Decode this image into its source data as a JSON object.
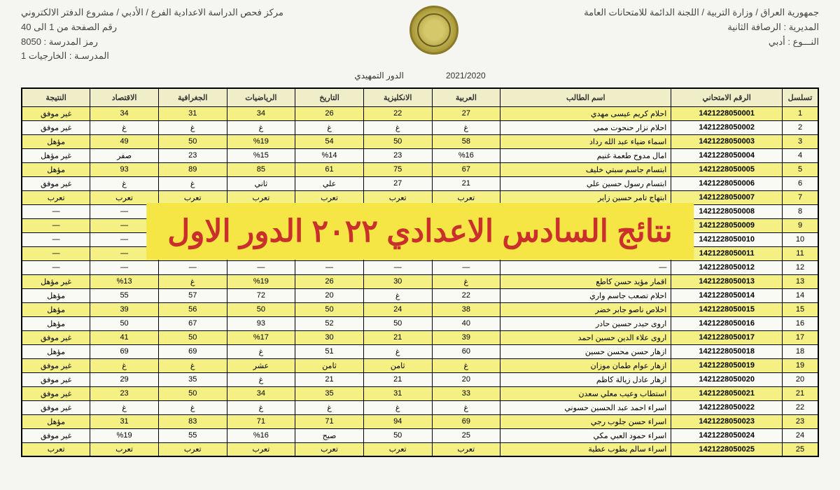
{
  "header": {
    "right_lines": [
      "جمهورية العراق / وزارة التربية / اللجنة الدائمة للامتحانات العامة",
      "المديرية : الرصافة الثانية",
      "النـــوع : أدبي"
    ],
    "left_lines": [
      "مركز فحص الدراسة الاعدادية الفرع / الأدبي / مشروع الدفتر الالكتروني",
      "رقم الصفحة من 1 الى 40",
      "رمز المدرسة : 8050",
      "المدرسـة : الخارجيات 1"
    ],
    "year_label": "الدور التمهيدي",
    "year_value": "2021/2020"
  },
  "overlay_text": "نتائج السادس الاعدادي ٢٠٢٢ الدور الاول",
  "columns": [
    "تسلسل",
    "الرقم الامتحاني",
    "اسم الطالب",
    "العربية",
    "الانكليزية",
    "التاريخ",
    "الرياضيات",
    "الجغرافية",
    "الاقتصاد",
    "النتيجة"
  ],
  "rows": [
    {
      "y": true,
      "seq": "1",
      "exam": "1421228050001",
      "name": "احلام كريم عيسى مهدي",
      "s": [
        "27",
        "22",
        "26",
        "34",
        "31",
        "34"
      ],
      "r": "غير موفق"
    },
    {
      "y": false,
      "seq": "2",
      "exam": "1421228050002",
      "name": "احلام نزار حنحوت ممي",
      "s": [
        "غ",
        "غ",
        "غ",
        "غ",
        "غ",
        "غ"
      ],
      "r": "غير موفق"
    },
    {
      "y": true,
      "seq": "3",
      "exam": "1421228050003",
      "name": "اسماء ضياء عبد الله رداد",
      "s": [
        "58",
        "50",
        "54",
        "%19",
        "50",
        "49"
      ],
      "r": "مؤهل"
    },
    {
      "y": false,
      "seq": "4",
      "exam": "1421228050004",
      "name": "امال مدوح طعمة غنيم",
      "s": [
        "%16",
        "23",
        "%14",
        "%15",
        "23",
        "صفر"
      ],
      "r": "غير مؤهل"
    },
    {
      "y": true,
      "seq": "5",
      "exam": "1421228050005",
      "name": "ابتسام جاسم سبتي خليف",
      "s": [
        "67",
        "75",
        "61",
        "85",
        "89",
        "93"
      ],
      "r": "مؤهل"
    },
    {
      "y": false,
      "seq": "6",
      "exam": "1421228050006",
      "name": "ابتسام رسول حسين علي",
      "s": [
        "21",
        "27",
        "علي",
        "ثاني",
        "غ",
        "غ"
      ],
      "r": "غير موفق"
    },
    {
      "y": true,
      "seq": "7",
      "exam": "1421228050007",
      "name": "ابتهاج تامر حسين زاير",
      "s": [
        "تعرب",
        "تعرب",
        "تعرب",
        "تعرب",
        "تعرب",
        "تعرب"
      ],
      "r": "تعرب"
    },
    {
      "y": false,
      "seq": "8",
      "exam": "1421228050008",
      "name": "—",
      "s": [
        "—",
        "—",
        "—",
        "—",
        "—",
        "—"
      ],
      "r": "—"
    },
    {
      "y": true,
      "seq": "9",
      "exam": "1421228050009",
      "name": "—",
      "s": [
        "—",
        "—",
        "—",
        "—",
        "—",
        "—"
      ],
      "r": "—"
    },
    {
      "y": false,
      "seq": "10",
      "exam": "1421228050010",
      "name": "—",
      "s": [
        "—",
        "—",
        "—",
        "—",
        "—",
        "—"
      ],
      "r": "—"
    },
    {
      "y": true,
      "seq": "11",
      "exam": "1421228050011",
      "name": "—",
      "s": [
        "—",
        "—",
        "—",
        "—",
        "—",
        "—"
      ],
      "r": "—"
    },
    {
      "y": false,
      "seq": "12",
      "exam": "1421228050012",
      "name": "—",
      "s": [
        "—",
        "—",
        "—",
        "—",
        "—",
        "—"
      ],
      "r": "—"
    },
    {
      "y": true,
      "seq": "13",
      "exam": "1421228050013",
      "name": "اقمار مؤيد حسن كاطع",
      "s": [
        "غ",
        "30",
        "26",
        "%19",
        "غ",
        "%13"
      ],
      "r": "غير مؤهل"
    },
    {
      "y": false,
      "seq": "14",
      "exam": "1421228050014",
      "name": "احلام تصعب جاسم واري",
      "s": [
        "22",
        "غ",
        "20",
        "72",
        "57",
        "55"
      ],
      "r": "مؤهل"
    },
    {
      "y": true,
      "seq": "15",
      "exam": "1421228050015",
      "name": "اخلاص ناصو جابر خضر",
      "s": [
        "38",
        "24",
        "50",
        "50",
        "56",
        "39"
      ],
      "r": "مؤهل"
    },
    {
      "y": false,
      "seq": "16",
      "exam": "1421228050016",
      "name": "اروى حيدر حسين حادر",
      "s": [
        "40",
        "50",
        "52",
        "93",
        "67",
        "50"
      ],
      "r": "مؤهل"
    },
    {
      "y": true,
      "seq": "17",
      "exam": "1421228050017",
      "name": "اروى علاء الدين حسين احمد",
      "s": [
        "39",
        "21",
        "30",
        "%17",
        "50",
        "41"
      ],
      "r": "غير موفق"
    },
    {
      "y": false,
      "seq": "18",
      "exam": "1421228050018",
      "name": "ازهار حسن محسن حسين",
      "s": [
        "60",
        "غ",
        "51",
        "غ",
        "69",
        "69"
      ],
      "r": "مؤهل"
    },
    {
      "y": true,
      "seq": "19",
      "exam": "1421228050019",
      "name": "ازهار عوام طمان موزان",
      "s": [
        "غ",
        "ثامن",
        "ثامن",
        "عشر",
        "غ",
        "غ"
      ],
      "r": "غير موفق"
    },
    {
      "y": false,
      "seq": "20",
      "exam": "1421228050020",
      "name": "ازهار عادل زيالة كاظم",
      "s": [
        "20",
        "21",
        "21",
        "غ",
        "35",
        "29"
      ],
      "r": "غير موفق"
    },
    {
      "y": true,
      "seq": "21",
      "exam": "1421228050021",
      "name": "استطاب وعيب معلي سعدن",
      "s": [
        "33",
        "31",
        "35",
        "34",
        "50",
        "23"
      ],
      "r": "غير موفق"
    },
    {
      "y": false,
      "seq": "22",
      "exam": "1421228050022",
      "name": "اسراء احمد عبد الحسين حسوني",
      "s": [
        "غ",
        "غ",
        "غ",
        "غ",
        "غ",
        "غ"
      ],
      "r": "غير موفق"
    },
    {
      "y": true,
      "seq": "23",
      "exam": "1421228050023",
      "name": "اسراء حسن جلوب رجي",
      "s": [
        "69",
        "94",
        "71",
        "71",
        "83",
        "31"
      ],
      "r": "مؤهل"
    },
    {
      "y": false,
      "seq": "24",
      "exam": "1421228050024",
      "name": "اسراء حمود العبي مكي",
      "s": [
        "25",
        "50",
        "صبح",
        "%16",
        "55",
        "%19"
      ],
      "r": "غير موفق"
    },
    {
      "y": true,
      "seq": "25",
      "exam": "1421228050025",
      "name": "اسراء سالم بطوب عطية",
      "s": [
        "تعرب",
        "تعرب",
        "تعرب",
        "تعرب",
        "تعرب",
        "تعرب"
      ],
      "r": "تعرب"
    }
  ]
}
